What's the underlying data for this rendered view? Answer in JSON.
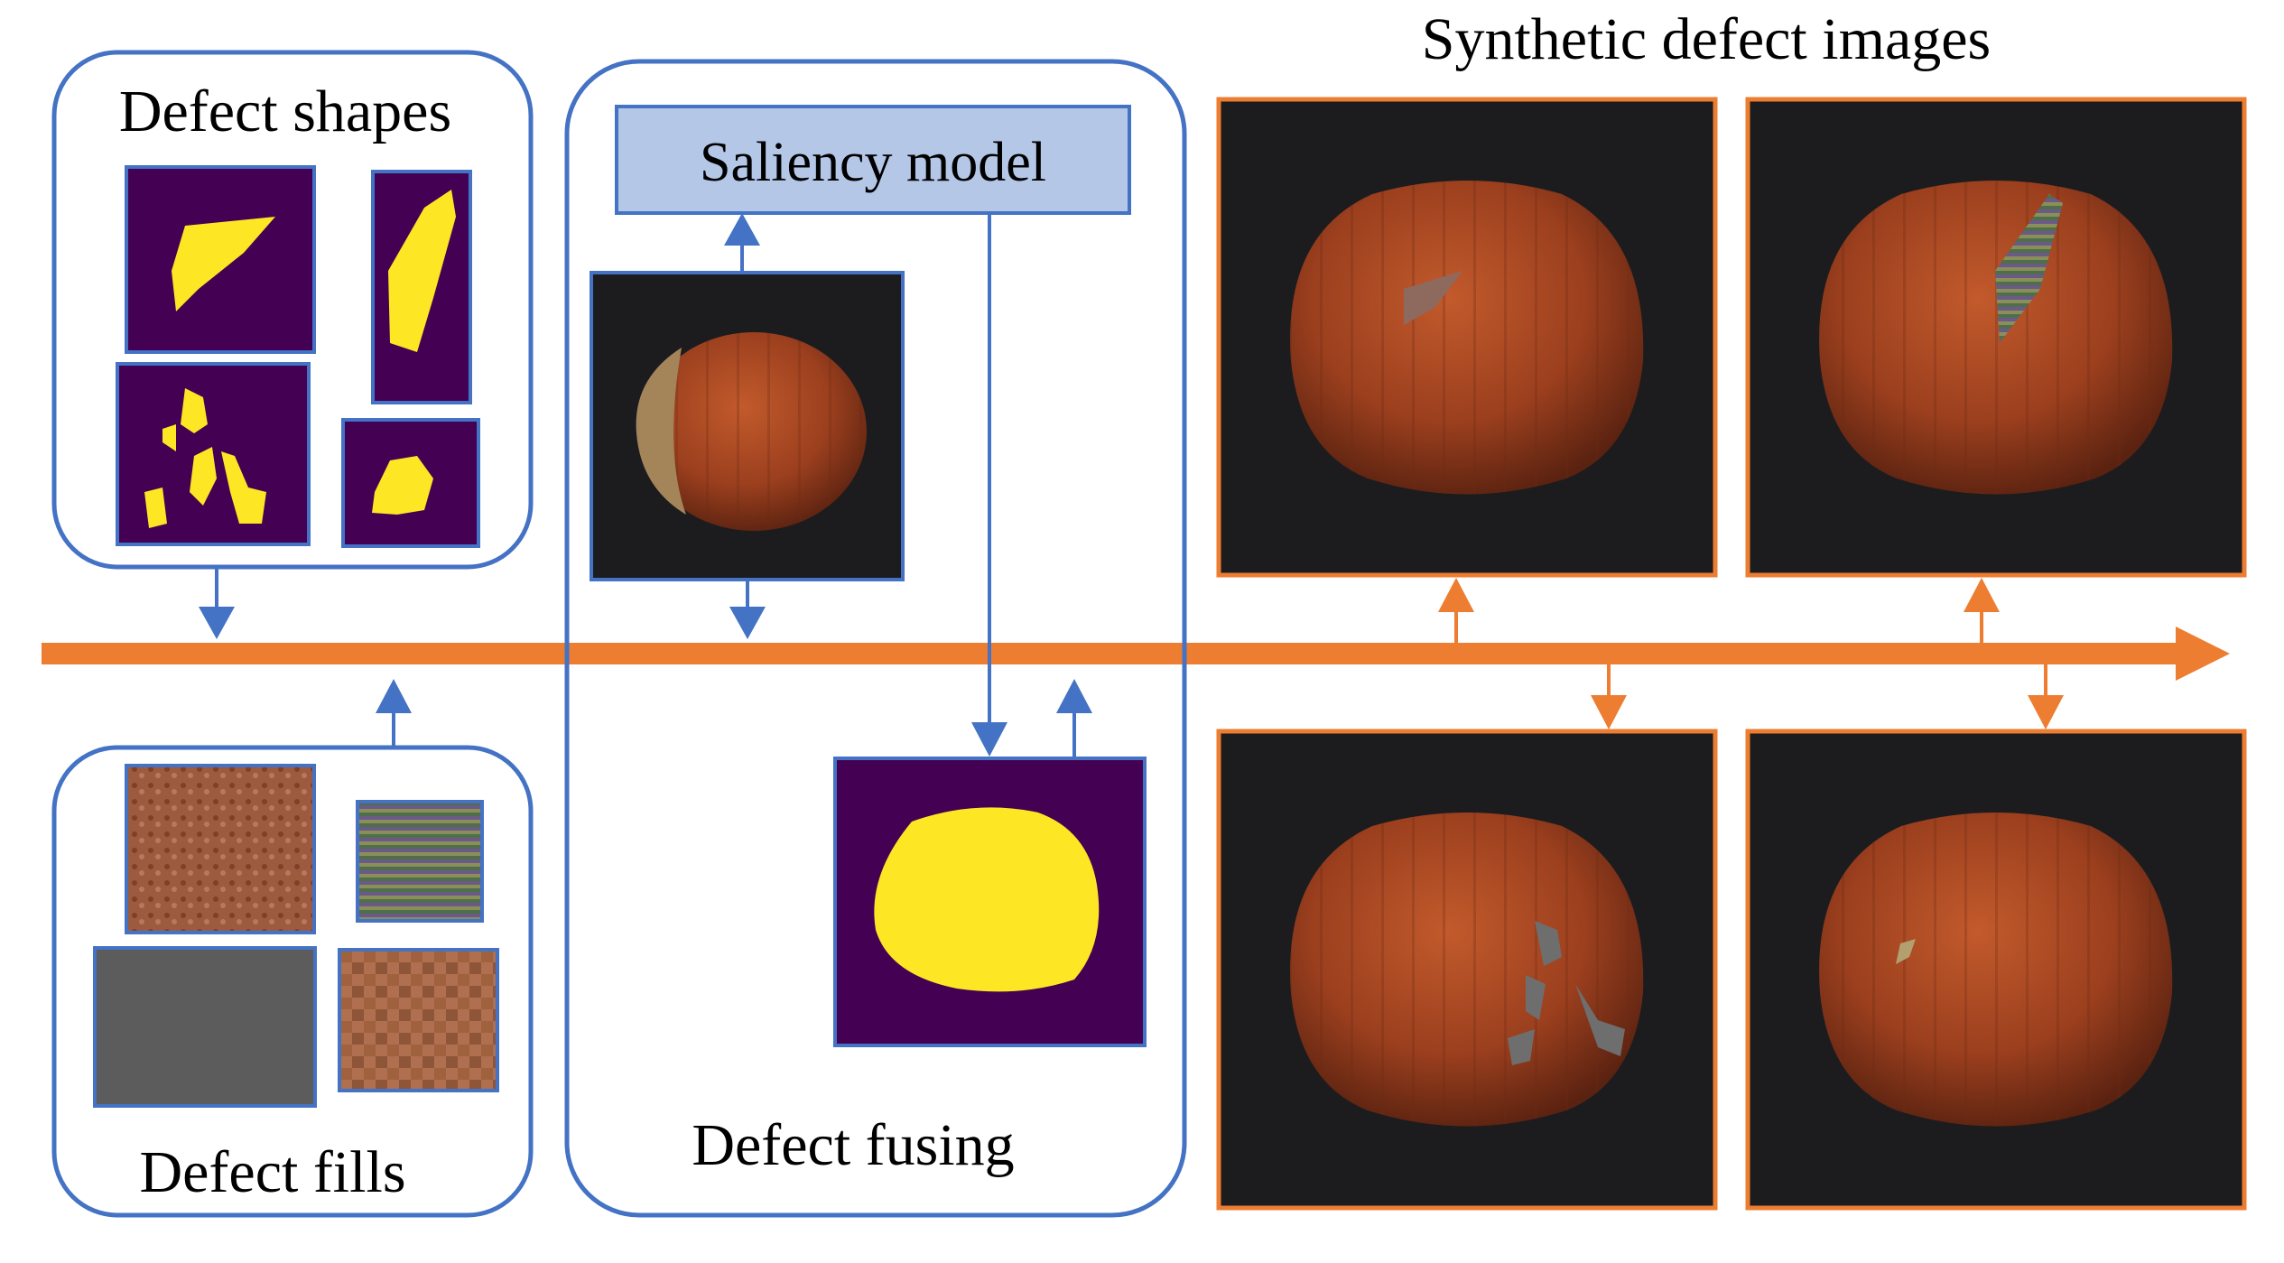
{
  "panels": {
    "shapes": {
      "title": "Defect shapes"
    },
    "fills": {
      "title": "Defect fills"
    },
    "fusing": {
      "title": "Defect fusing",
      "saliency_label": "Saliency model"
    },
    "synthetic": {
      "title": "Synthetic defect images"
    }
  },
  "colors": {
    "panel_border": "#4472c4",
    "timeline": "#ed7d31",
    "saliency_fill": "#b4c7e7",
    "mask_background": "#440154",
    "mask_foreground": "#fde725",
    "photo_background": "#1c1c1f",
    "hazelnut": "#9b3f1e"
  }
}
